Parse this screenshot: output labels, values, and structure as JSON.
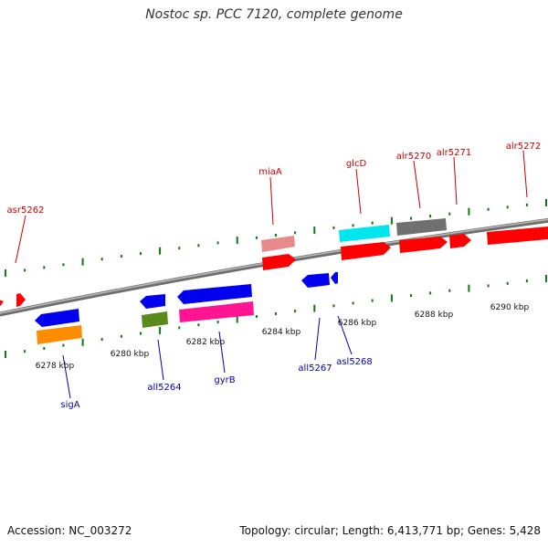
{
  "title": "Nostoc sp. PCC 7120, complete genome",
  "footer": {
    "accession": "Accession: NC_003272",
    "summary": "Topology: circular; Length: 6,413,771 bp; Genes: 5,428"
  },
  "colors": {
    "backbone": "#8a8a8a",
    "tick": "#0a7d0a",
    "forward_label": "#cc0000",
    "reverse_label": "#0000aa"
  },
  "scale_labels": [
    {
      "label": "6278 kbp"
    },
    {
      "label": "6280 kbp"
    },
    {
      "label": "6282 kbp"
    },
    {
      "label": "6284 kbp"
    },
    {
      "label": "6286 kbp"
    },
    {
      "label": "6288 kbp"
    },
    {
      "label": "6290 kbp"
    }
  ],
  "forward_labels": [
    {
      "name": "asr5262"
    },
    {
      "name": "miaA"
    },
    {
      "name": "glcD"
    },
    {
      "name": "alr5270"
    },
    {
      "name": "alr5271"
    },
    {
      "name": "alr5272"
    }
  ],
  "reverse_labels": [
    {
      "name": "sigA"
    },
    {
      "name": "all5264"
    },
    {
      "name": "gyrB"
    },
    {
      "name": "all5267"
    },
    {
      "name": "asl5268"
    }
  ]
}
